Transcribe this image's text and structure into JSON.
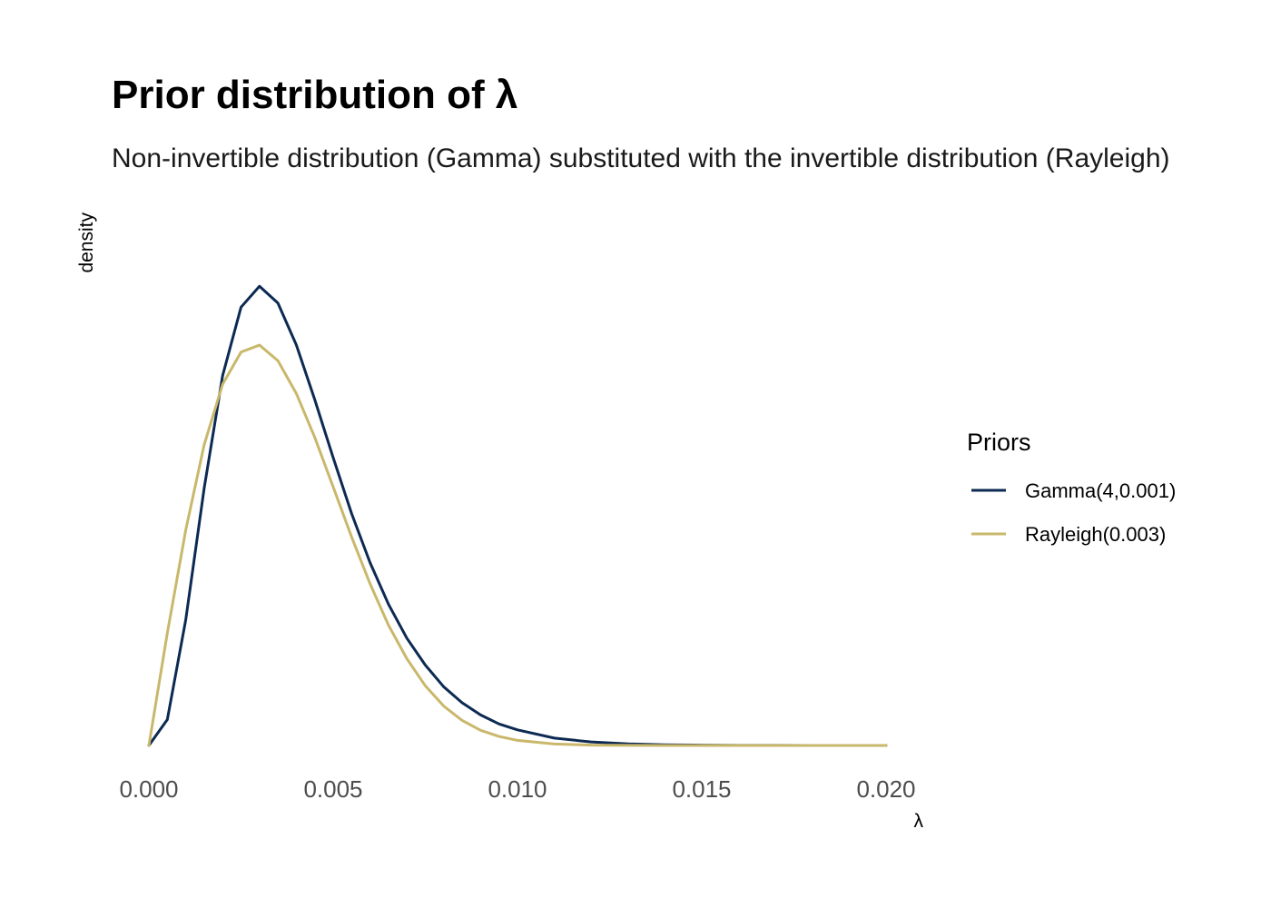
{
  "chart_data": {
    "type": "line",
    "title": "Prior distribution of λ",
    "subtitle": "Non-invertible distribution (Gamma) substituted with the invertible distribution (Rayleigh)",
    "xlabel": "λ",
    "ylabel": "density",
    "xlim": [
      0,
      0.02
    ],
    "ylim": [
      0,
      260
    ],
    "x_ticks": [
      0,
      0.005,
      0.01,
      0.015,
      0.02
    ],
    "x_tick_labels": [
      "0.000",
      "0.005",
      "0.010",
      "0.015",
      "0.020"
    ],
    "y_ticks_shown": false,
    "grid": false,
    "legend_position": "right",
    "legend_title": "Priors",
    "x": [
      0,
      0.0005,
      0.001,
      0.0015,
      0.002,
      0.0025,
      0.003,
      0.0035,
      0.004,
      0.0045,
      0.005,
      0.0055,
      0.006,
      0.0065,
      0.007,
      0.0075,
      0.008,
      0.0085,
      0.009,
      0.0095,
      0.01,
      0.011,
      0.012,
      0.013,
      0.014,
      0.015,
      0.016,
      0.017,
      0.018,
      0.019,
      0.02
    ],
    "series": [
      {
        "name": "Gamma(4,0.001)",
        "color": "#0c2a52",
        "values": [
          0,
          12.6,
          61.3,
          125.5,
          180.4,
          213.8,
          224.0,
          215.8,
          195.4,
          168.7,
          140.4,
          113.1,
          89.2,
          68.9,
          52.3,
          39.2,
          28.6,
          20.8,
          14.9,
          10.5,
          7.6,
          3.6,
          1.7,
          0.8,
          0.35,
          0.15,
          0.06,
          0.03,
          0.01,
          0.0,
          0.0
        ]
      },
      {
        "name": "Rayleigh(0.003)",
        "color": "#c9b86b",
        "values": [
          0,
          54.8,
          105.1,
          146.7,
          176.2,
          191.9,
          195.3,
          187.7,
          171.7,
          150.3,
          126.1,
          101.7,
          78.9,
          58.7,
          42.3,
          29.1,
          19.2,
          12.2,
          7.4,
          4.4,
          2.5,
          0.7,
          0.17,
          0.04,
          0.0,
          0.0,
          0.0,
          0.0,
          0.0,
          0.0,
          0.0
        ]
      }
    ]
  }
}
